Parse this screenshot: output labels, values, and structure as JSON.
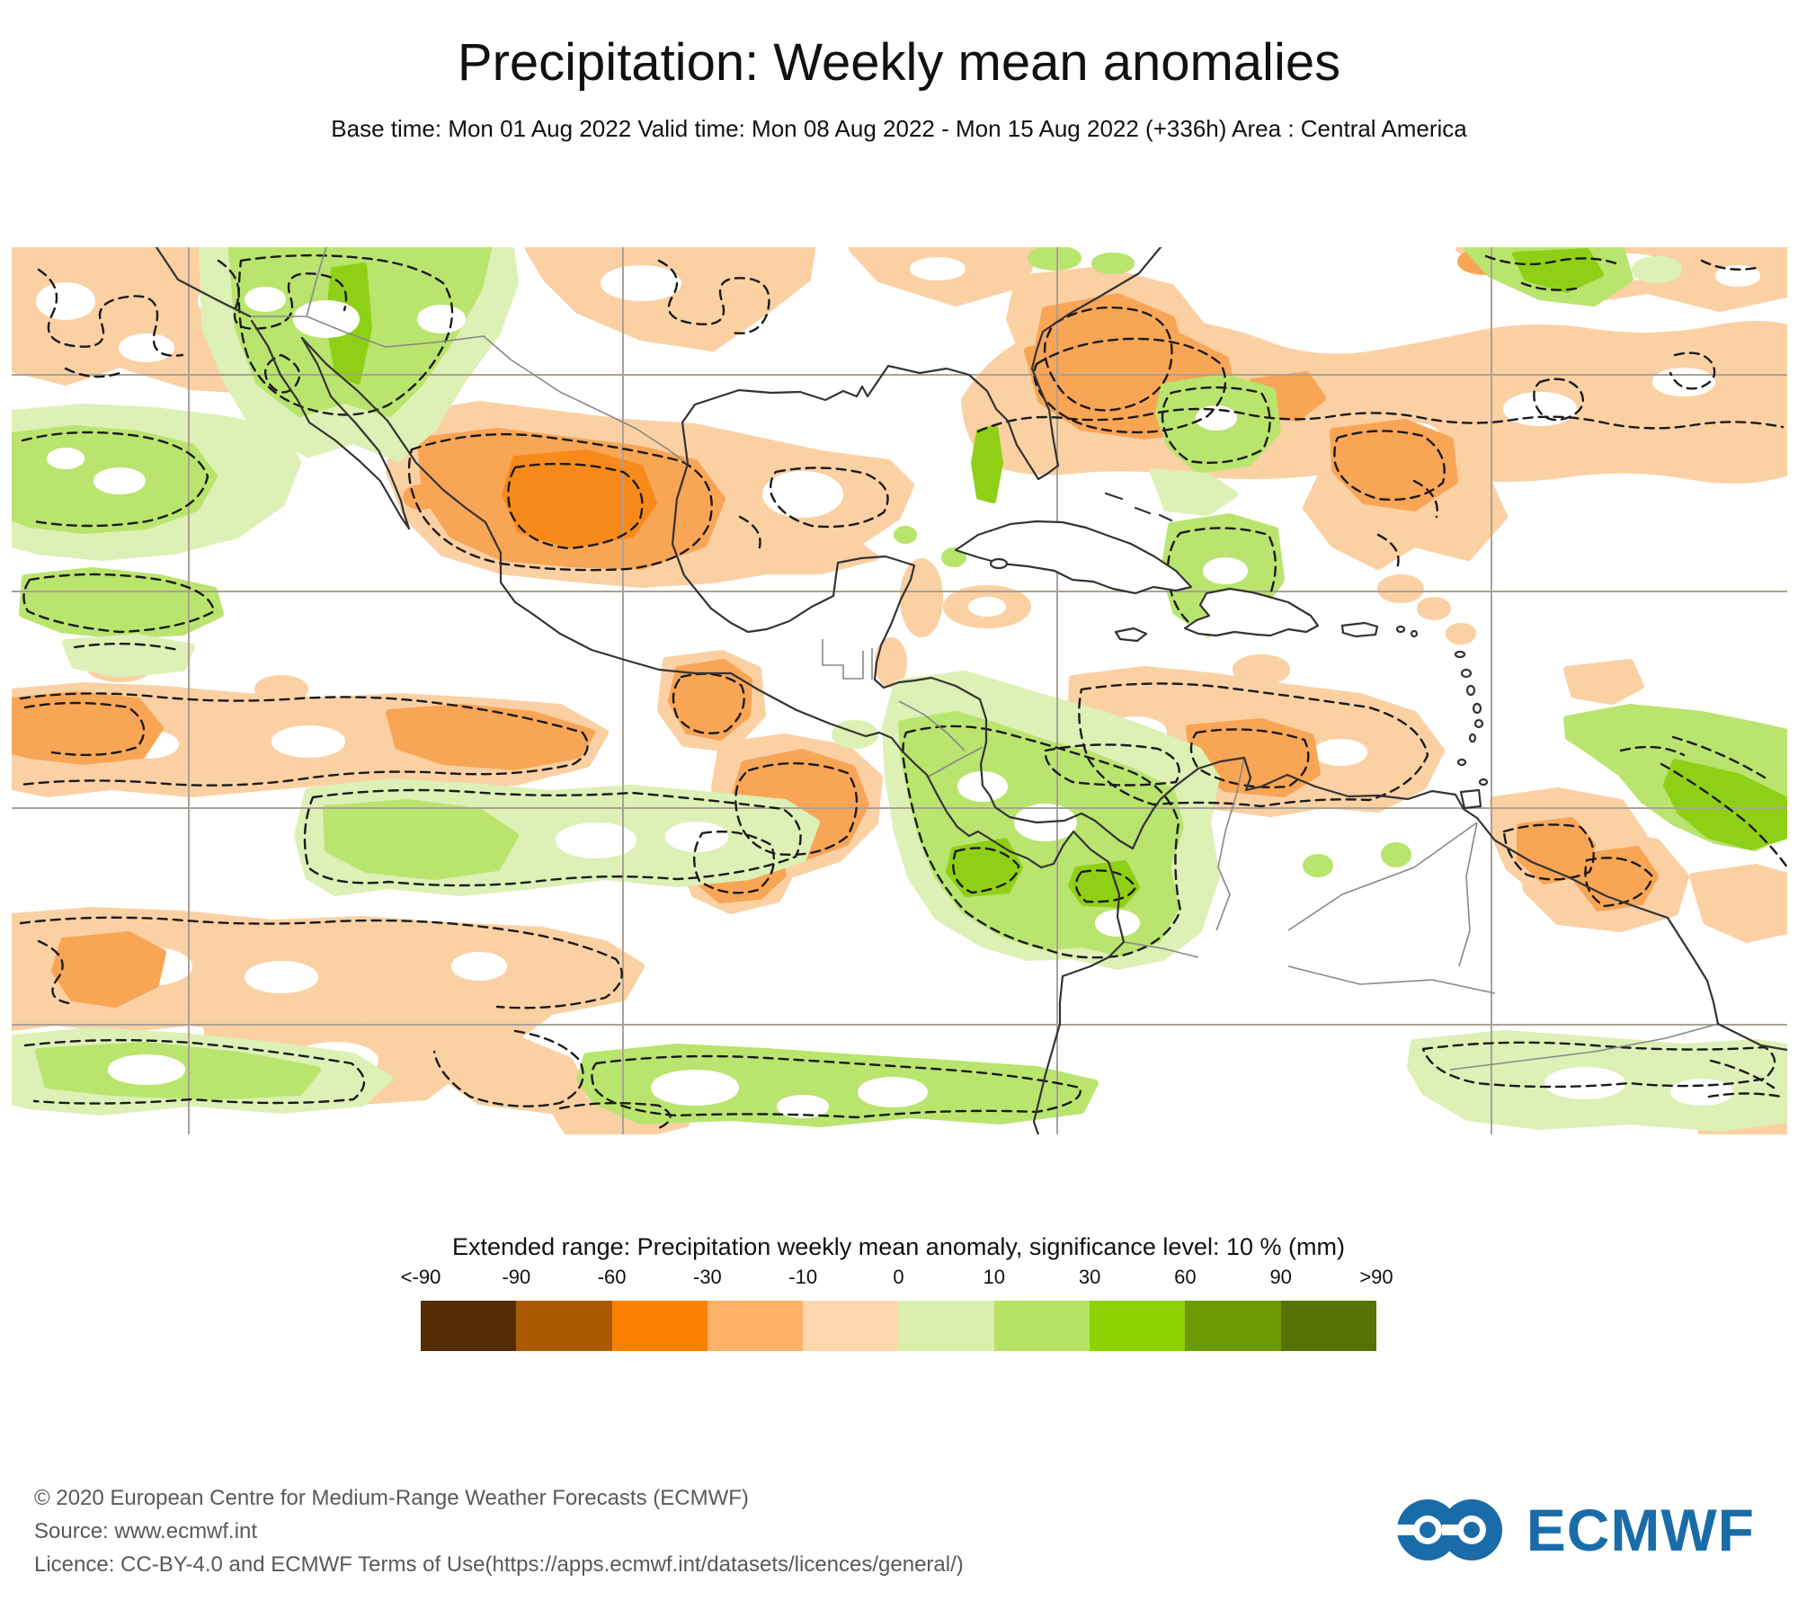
{
  "header": {
    "title": "Precipitation: Weekly mean anomalies",
    "subtitle": "Base time: Mon 01 Aug 2022 Valid time: Mon 08 Aug 2022 - Mon 15 Aug 2022 (+336h) Area : Central America"
  },
  "map": {
    "area_label": "Central America",
    "palette": {
      "pale_orange": "#FBD0A3",
      "mid_orange": "#F9A556",
      "strong_orange": "#F8891B",
      "pale_green": "#DDF0B5",
      "light_green": "#B9E46E",
      "strong_green": "#8FD016",
      "gridline": "#AAA294",
      "coastline": "#333333",
      "border": "#888888",
      "contour": "#1A1A1A"
    }
  },
  "legend": {
    "title": "Extended range: Precipitation weekly mean anomaly, significance level: 10 % (mm)",
    "tick_labels": [
      "<-90",
      "-90",
      "-60",
      "-30",
      "-10",
      "0",
      "10",
      "30",
      "60",
      "90",
      ">90"
    ],
    "colors": [
      "#552B04",
      "#AC5903",
      "#FC8103",
      "#FDB268",
      "#FED7AE",
      "#DAEFAD",
      "#B5E364",
      "#8CD104",
      "#6B9A03",
      "#567203"
    ]
  },
  "footer": {
    "lines": [
      "© 2020 European Centre for Medium-Range Weather Forecasts (ECMWF)",
      "Source: www.ecmwf.int",
      "Licence: CC-BY-4.0 and ECMWF Terms of Use(https://apps.ecmwf.int/datasets/licences/general/)"
    ]
  },
  "logo": {
    "text": "ECMWF",
    "color": "#1A6CA9"
  }
}
